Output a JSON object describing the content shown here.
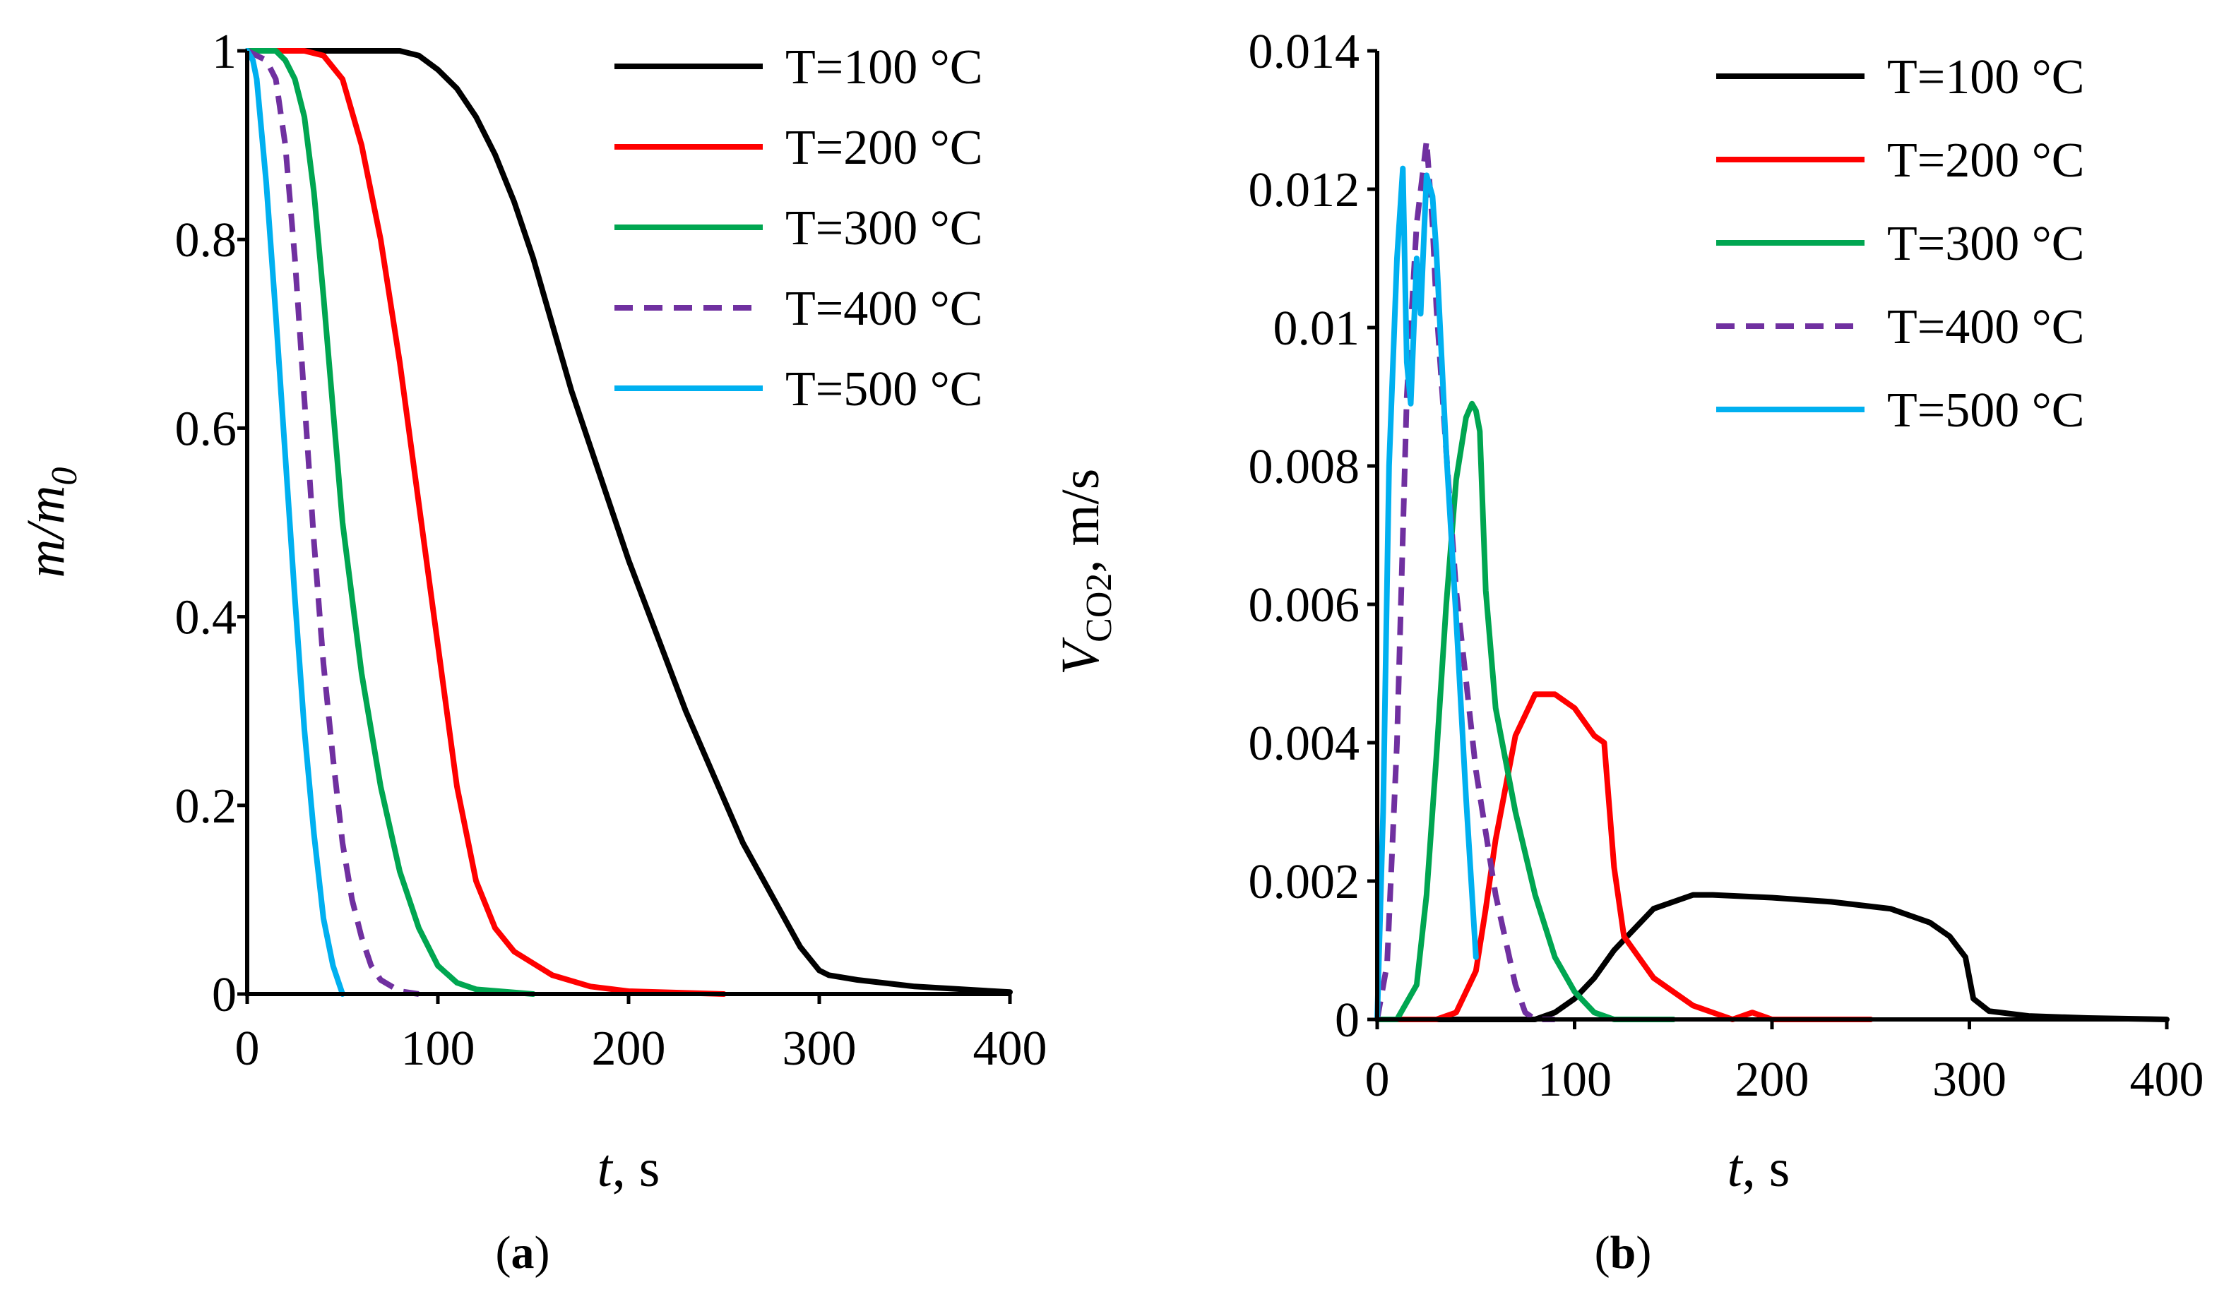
{
  "chart_data": [
    {
      "type": "line",
      "panel": "a",
      "panel_label": "(a)",
      "title": "",
      "xlabel": {
        "main": "t",
        "rest": ", s"
      },
      "ylabel": {
        "main": "m/m",
        "sub": "0"
      },
      "xlim": [
        0,
        400
      ],
      "ylim": [
        0,
        1
      ],
      "xticks": [
        0,
        100,
        200,
        300,
        400
      ],
      "yticks": [
        0,
        0.2,
        0.4,
        0.6,
        0.8,
        1
      ],
      "ytick_labels": [
        "0",
        "0.2",
        "0.4",
        "0.6",
        "0.8",
        "1"
      ],
      "legend_position": "top-right",
      "series": [
        {
          "name": "T=100 °C",
          "color": "#000000",
          "dash": "solid",
          "x": [
            0,
            80,
            90,
            100,
            110,
            120,
            130,
            140,
            150,
            170,
            200,
            230,
            260,
            290,
            300,
            305,
            320,
            350,
            400
          ],
          "y": [
            1,
            1,
            0.995,
            0.98,
            0.96,
            0.93,
            0.89,
            0.84,
            0.78,
            0.64,
            0.46,
            0.3,
            0.16,
            0.05,
            0.025,
            0.02,
            0.015,
            0.008,
            0.002
          ]
        },
        {
          "name": "T=200 °C",
          "color": "#ff0000",
          "dash": "solid",
          "x": [
            0,
            30,
            40,
            50,
            60,
            70,
            80,
            90,
            100,
            110,
            120,
            130,
            140,
            160,
            180,
            200,
            250
          ],
          "y": [
            1,
            1,
            0.995,
            0.97,
            0.9,
            0.8,
            0.67,
            0.52,
            0.37,
            0.22,
            0.12,
            0.07,
            0.045,
            0.02,
            0.008,
            0.003,
            0
          ]
        },
        {
          "name": "T=300 °C",
          "color": "#00a651",
          "dash": "solid",
          "x": [
            0,
            15,
            20,
            25,
            30,
            35,
            40,
            45,
            50,
            60,
            70,
            80,
            90,
            100,
            110,
            120,
            150
          ],
          "y": [
            1,
            1,
            0.99,
            0.97,
            0.93,
            0.85,
            0.74,
            0.62,
            0.5,
            0.34,
            0.22,
            0.13,
            0.07,
            0.03,
            0.012,
            0.005,
            0
          ]
        },
        {
          "name": "T=400 °C",
          "color": "#7030a0",
          "dash": "dashed",
          "x": [
            0,
            10,
            15,
            20,
            25,
            30,
            35,
            40,
            45,
            50,
            55,
            60,
            65,
            70,
            80,
            90
          ],
          "y": [
            1,
            0.99,
            0.97,
            0.9,
            0.78,
            0.63,
            0.48,
            0.35,
            0.25,
            0.16,
            0.1,
            0.06,
            0.03,
            0.015,
            0.003,
            0
          ]
        },
        {
          "name": "T=500 °C",
          "color": "#00b0f0",
          "dash": "solid",
          "x": [
            0,
            3,
            5,
            10,
            15,
            20,
            25,
            30,
            35,
            40,
            45,
            50
          ],
          "y": [
            1,
            0.99,
            0.97,
            0.86,
            0.72,
            0.57,
            0.42,
            0.28,
            0.17,
            0.08,
            0.03,
            0
          ]
        }
      ]
    },
    {
      "type": "line",
      "panel": "b",
      "panel_label": "(b)",
      "title": "",
      "xlabel": {
        "main": "t",
        "rest": ", s"
      },
      "ylabel": {
        "main": "V",
        "sub": "CO2",
        "rest": ", m/s"
      },
      "xlim": [
        0,
        400
      ],
      "ylim": [
        0,
        0.014
      ],
      "xticks": [
        0,
        100,
        200,
        300,
        400
      ],
      "yticks": [
        0,
        0.002,
        0.004,
        0.006,
        0.008,
        0.01,
        0.012,
        0.014
      ],
      "ytick_labels": [
        "0",
        "0.002",
        "0.004",
        "0.006",
        "0.008",
        "0.01",
        "0.012",
        "0.014"
      ],
      "legend_position": "top-right",
      "series": [
        {
          "name": "T=100 °C",
          "color": "#000000",
          "dash": "solid",
          "x": [
            0,
            80,
            90,
            100,
            110,
            120,
            130,
            140,
            150,
            160,
            170,
            200,
            230,
            260,
            280,
            290,
            298,
            302,
            310,
            330,
            360,
            400
          ],
          "y": [
            0,
            0,
            0.0001,
            0.0003,
            0.0006,
            0.001,
            0.0013,
            0.0016,
            0.0017,
            0.0018,
            0.0018,
            0.00176,
            0.0017,
            0.0016,
            0.0014,
            0.0012,
            0.0009,
            0.0003,
            0.00012,
            5e-05,
            2e-05,
            0
          ]
        },
        {
          "name": "T=200 °C",
          "color": "#ff0000",
          "dash": "solid",
          "x": [
            0,
            30,
            40,
            50,
            55,
            60,
            70,
            80,
            90,
            100,
            110,
            115,
            120,
            125,
            140,
            160,
            180,
            190,
            200,
            250
          ],
          "y": [
            0,
            0,
            0.0001,
            0.0007,
            0.0016,
            0.0026,
            0.0041,
            0.0047,
            0.0047,
            0.0045,
            0.0041,
            0.004,
            0.0022,
            0.0012,
            0.0006,
            0.0002,
            0,
            0.0001,
            0,
            0
          ]
        },
        {
          "name": "T=300 °C",
          "color": "#00a651",
          "dash": "solid",
          "x": [
            0,
            10,
            20,
            25,
            30,
            35,
            40,
            45,
            48,
            50,
            52,
            55,
            60,
            70,
            80,
            90,
            100,
            110,
            120,
            150
          ],
          "y": [
            0,
            0,
            0.0005,
            0.0018,
            0.0038,
            0.006,
            0.0078,
            0.0087,
            0.0089,
            0.0088,
            0.0085,
            0.0062,
            0.0045,
            0.003,
            0.0018,
            0.0009,
            0.0004,
            0.0001,
            0,
            0
          ]
        },
        {
          "name": "T=400 °C",
          "color": "#7030a0",
          "dash": "dashed",
          "x": [
            0,
            5,
            10,
            15,
            20,
            25,
            28,
            30,
            35,
            40,
            50,
            60,
            70,
            75,
            80,
            90
          ],
          "y": [
            0,
            0.0008,
            0.004,
            0.009,
            0.0115,
            0.0127,
            0.0115,
            0.0103,
            0.0082,
            0.0062,
            0.0036,
            0.0018,
            0.0005,
            0.0001,
            0,
            0
          ]
        },
        {
          "name": "T=500 °C",
          "color": "#00b0f0",
          "dash": "solid",
          "x": [
            0,
            3,
            6,
            10,
            13,
            15,
            17,
            20,
            22,
            25,
            28,
            30,
            35,
            40,
            45,
            50
          ],
          "y": [
            0,
            0.003,
            0.008,
            0.011,
            0.0123,
            0.0095,
            0.0089,
            0.011,
            0.0102,
            0.0122,
            0.0119,
            0.0111,
            0.0082,
            0.0058,
            0.0032,
            0.0009
          ]
        }
      ]
    }
  ]
}
